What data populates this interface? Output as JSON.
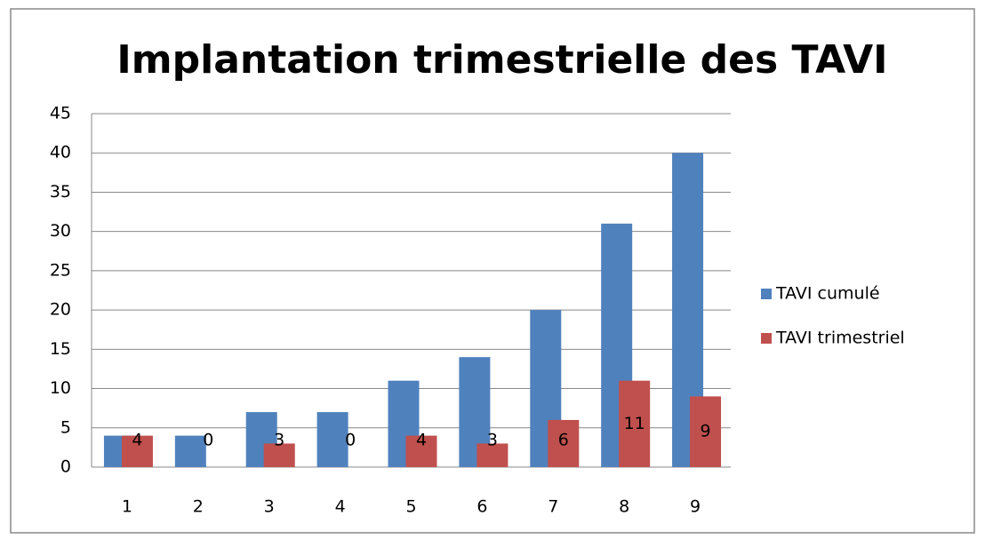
{
  "chart_data": {
    "type": "bar",
    "title": "Implantation trimestrielle des TAVI",
    "categories": [
      "1",
      "2",
      "3",
      "4",
      "5",
      "6",
      "7",
      "8",
      "9"
    ],
    "series": [
      {
        "name": "TAVI cumulé",
        "color": "#4f81bd",
        "values": [
          4,
          4,
          7,
          7,
          11,
          14,
          20,
          31,
          40
        ]
      },
      {
        "name": "TAVI trimestriel",
        "color": "#c0504d",
        "values": [
          4,
          0,
          3,
          0,
          4,
          3,
          6,
          11,
          9
        ],
        "data_labels": true
      }
    ],
    "ylim": [
      0,
      45
    ],
    "yticks": [
      0,
      5,
      10,
      15,
      20,
      25,
      30,
      35,
      40,
      45
    ],
    "grid": true,
    "legend": "right"
  }
}
